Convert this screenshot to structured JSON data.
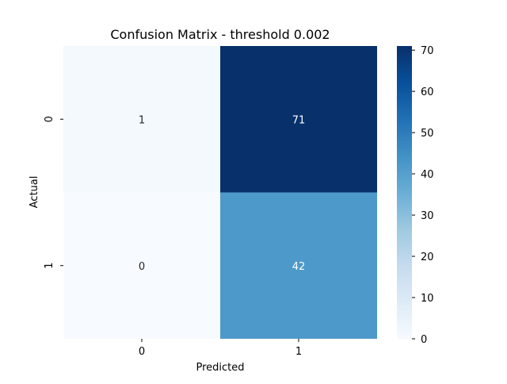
{
  "chart_data": {
    "type": "heatmap",
    "title": "Confusion Matrix - threshold 0.002",
    "xlabel": "Predicted",
    "ylabel": "Actual",
    "x_categories": [
      "0",
      "1"
    ],
    "y_categories": [
      "0",
      "1"
    ],
    "values": [
      [
        1,
        71
      ],
      [
        0,
        42
      ]
    ],
    "colormap": "Blues",
    "color_range": [
      0,
      71
    ],
    "colorbar_ticks": [
      0,
      10,
      20,
      30,
      40,
      50,
      60,
      70
    ],
    "annotations": true,
    "colors": {
      "low": "#f7fbff",
      "high": "#08306b",
      "text_dark": "#262626",
      "text_light": "#ffffff"
    }
  }
}
